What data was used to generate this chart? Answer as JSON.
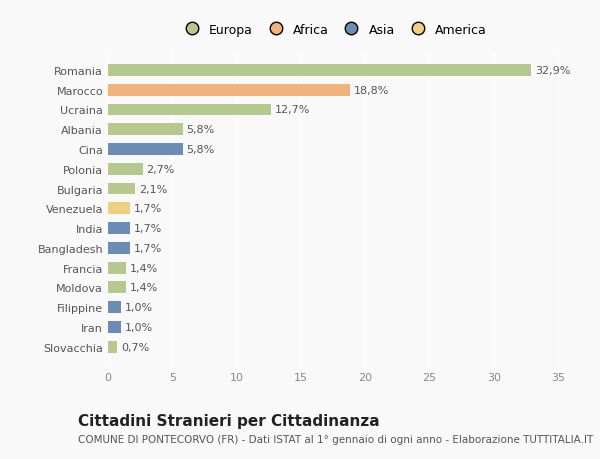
{
  "countries": [
    "Romania",
    "Marocco",
    "Ucraina",
    "Albania",
    "Cina",
    "Polonia",
    "Bulgaria",
    "Venezuela",
    "India",
    "Bangladesh",
    "Francia",
    "Moldova",
    "Filippine",
    "Iran",
    "Slovacchia"
  ],
  "values": [
    32.9,
    18.8,
    12.7,
    5.8,
    5.8,
    2.7,
    2.1,
    1.7,
    1.7,
    1.7,
    1.4,
    1.4,
    1.0,
    1.0,
    0.7
  ],
  "labels": [
    "32,9%",
    "18,8%",
    "12,7%",
    "5,8%",
    "5,8%",
    "2,7%",
    "2,1%",
    "1,7%",
    "1,7%",
    "1,7%",
    "1,4%",
    "1,4%",
    "1,0%",
    "1,0%",
    "0,7%"
  ],
  "continents": [
    "Europa",
    "Africa",
    "Europa",
    "Europa",
    "Asia",
    "Europa",
    "Europa",
    "America",
    "Asia",
    "Asia",
    "Europa",
    "Europa",
    "Asia",
    "Asia",
    "Europa"
  ],
  "continent_colors": {
    "Europa": "#b5c98e",
    "Africa": "#f0b47a",
    "Asia": "#6b8db5",
    "America": "#f0d080"
  },
  "legend_entries": [
    "Europa",
    "Africa",
    "Asia",
    "America"
  ],
  "legend_colors": [
    "#b5c98e",
    "#f0b47a",
    "#6b8db5",
    "#f0d080"
  ],
  "title": "Cittadini Stranieri per Cittadinanza",
  "subtitle": "COMUNE DI PONTECORVO (FR) - Dati ISTAT al 1° gennaio di ogni anno - Elaborazione TUTTITALIA.IT",
  "xlim": [
    0,
    35
  ],
  "xticks": [
    0,
    5,
    10,
    15,
    20,
    25,
    30,
    35
  ],
  "background_color": "#f9f9f9",
  "plot_bg_color": "#f9f9f9",
  "grid_color": "#ffffff",
  "bar_height": 0.6,
  "label_fontsize": 8,
  "tick_fontsize": 8,
  "title_fontsize": 11,
  "subtitle_fontsize": 7.5
}
